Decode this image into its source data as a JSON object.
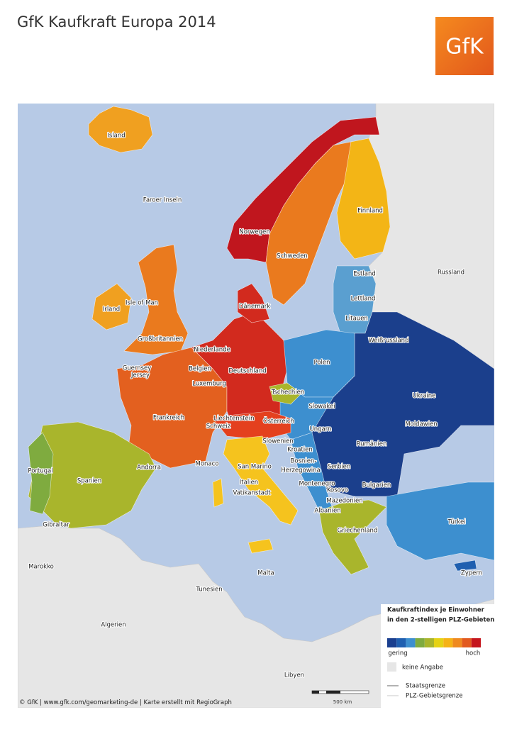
{
  "header": {
    "title": "GfK Kaufkraft Europa 2014",
    "logo": "GfK"
  },
  "map": {
    "labels": [
      "Island",
      "Faroer Inseln",
      "Norwegen",
      "Schweden",
      "Finnland",
      "Estland",
      "Lettland",
      "Litauen",
      "Russland",
      "Weißrussland",
      "Irland",
      "Isle of Man",
      "Großbritannien",
      "Dänemark",
      "Niederlande",
      "Belgien",
      "Deutschland",
      "Polen",
      "Guernsey",
      "Jersey",
      "Luxemburg",
      "Tschechien",
      "Slowakei",
      "Ukraine",
      "Frankreich",
      "Liechtenstein",
      "Schweiz",
      "Österreich",
      "Moldawien",
      "Ungarn",
      "Slowenien",
      "Kroatien",
      "Rumänien",
      "Monaco",
      "San Marino",
      "Bosnien-",
      "Herzegowina",
      "Serbien",
      "Portugal",
      "Spanien",
      "Andorra",
      "Italien",
      "Montenegro",
      "Kosovo",
      "Bulgarien",
      "Vatikanstadt",
      "Mazedonien",
      "Albanien",
      "Türkei",
      "Gibraltar",
      "Griechenland",
      "Marokko",
      "Malta",
      "Tunesien",
      "Zypern",
      "Algerien",
      "Libyen"
    ]
  },
  "legend": {
    "title": [
      "Kaufkraftindex je Einwohner",
      "in den 2-stelligen PLZ-Gebieten"
    ],
    "scale_colors": [
      "#1a3f8f",
      "#1f5fb0",
      "#3d8fcf",
      "#7fab3f",
      "#a9b52c",
      "#e5d214",
      "#f5b315",
      "#ef8a1f",
      "#e25a1f",
      "#c5161d"
    ],
    "low": "gering",
    "high": "hoch",
    "no_data": "keine Angabe",
    "state_border": "Staatsgrenze",
    "plz_border": "PLZ-Gebietsgrenze",
    "scale_bar": "500 km"
  },
  "footer": "© GfK | www.gfk.com/geomarketing-de | Karte erstellt mit RegioGraph"
}
